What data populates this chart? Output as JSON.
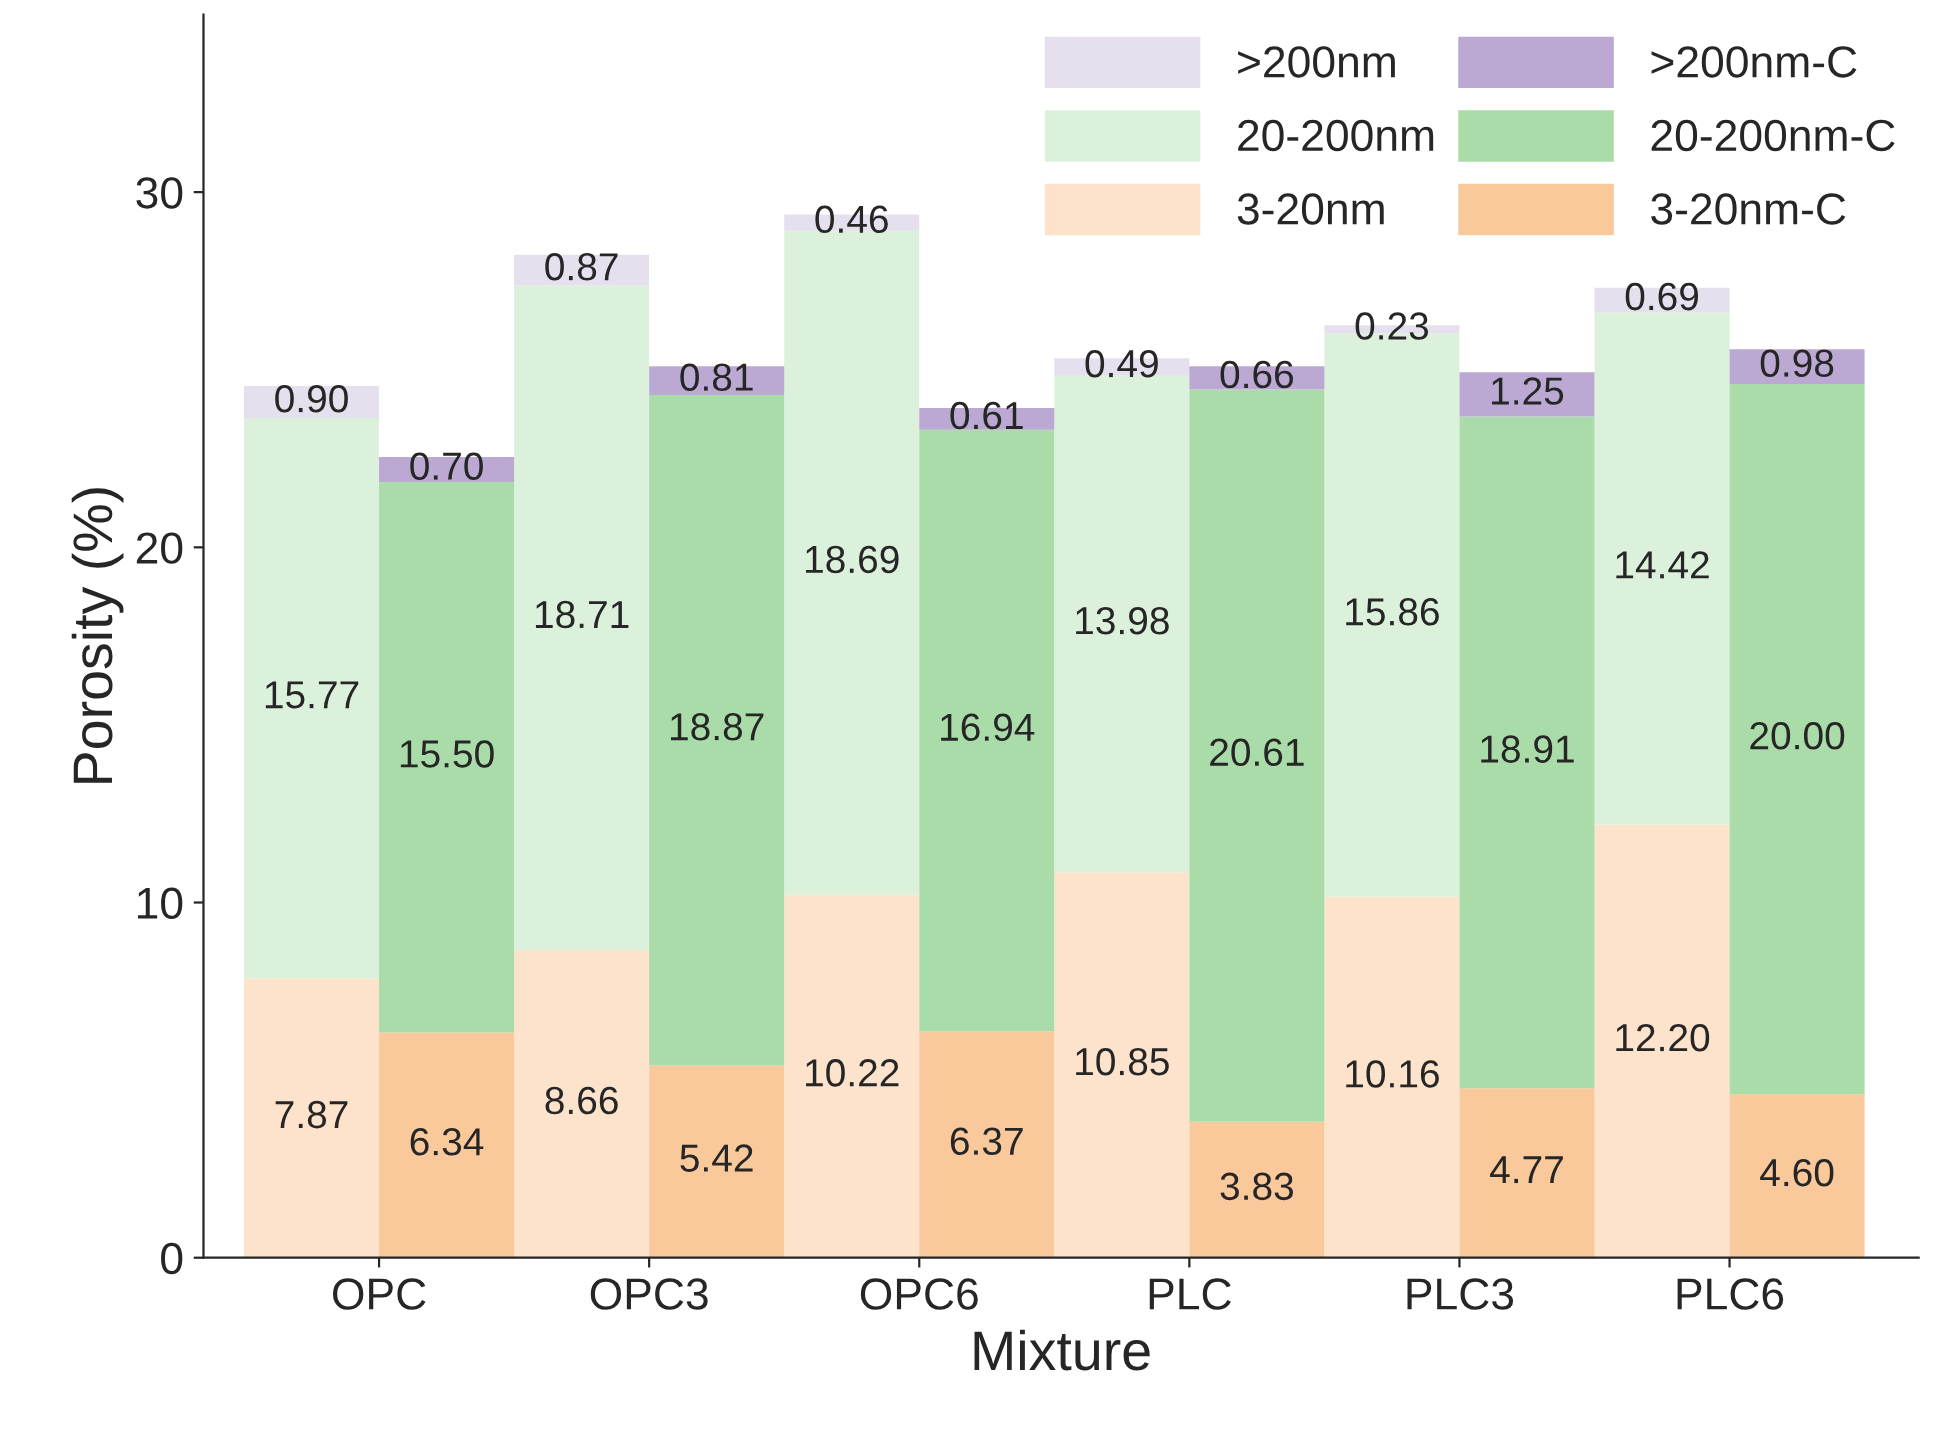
{
  "chart_data": {
    "type": "bar",
    "xlabel": "Mixture",
    "ylabel": "Porosity (%)",
    "categories": [
      "OPC",
      "OPC3",
      "OPC6",
      "PLC",
      "PLC3",
      "PLC6"
    ],
    "series": [
      {
        "name": "3-20nm",
        "color": "#fde3cc",
        "base": [
          0,
          0,
          0,
          0,
          0,
          0
        ],
        "values": [
          7.87,
          8.66,
          10.22,
          10.85,
          10.16,
          12.2
        ],
        "value_labels": [
          "7.87",
          "8.66",
          "10.22",
          "10.85",
          "10.16",
          "12.20"
        ]
      },
      {
        "name": "20-200nm",
        "color": "#dcf1dc",
        "base": [
          7.87,
          8.66,
          10.22,
          10.85,
          10.16,
          12.2
        ],
        "values": [
          15.77,
          18.71,
          18.69,
          13.98,
          15.86,
          14.42
        ],
        "value_labels": [
          "15.77",
          "18.71",
          "18.69",
          "13.98",
          "15.86",
          "14.42"
        ]
      },
      {
        "name": ">200nm",
        "color": "#e6dfee",
        "base": [
          23.64,
          27.37,
          28.91,
          24.83,
          26.02,
          26.62
        ],
        "values": [
          0.9,
          0.87,
          0.46,
          0.49,
          0.23,
          0.69
        ],
        "value_labels": [
          "0.90",
          "0.87",
          "0.46",
          "0.49",
          "0.23",
          "0.69"
        ]
      },
      {
        "name": "3-20nm-C",
        "color": "#f9c89b",
        "base": [
          0,
          0,
          0,
          0,
          0,
          0
        ],
        "values": [
          6.34,
          5.42,
          6.37,
          3.83,
          4.77,
          4.6
        ],
        "value_labels": [
          "6.34",
          "5.42",
          "6.37",
          "3.83",
          "4.77",
          "4.60"
        ]
      },
      {
        "name": "20-200nm-C",
        "color": "#aadcaa",
        "base": [
          6.34,
          5.42,
          6.37,
          3.83,
          4.77,
          4.6
        ],
        "values": [
          15.5,
          18.87,
          16.94,
          20.61,
          18.91,
          20.0
        ],
        "value_labels": [
          "15.50",
          "18.87",
          "16.94",
          "20.61",
          "18.91",
          "20.00"
        ]
      },
      {
        "name": ">200nm-C",
        "color": "#bca9d3",
        "base": [
          21.84,
          24.29,
          23.31,
          24.44,
          23.68,
          24.6
        ],
        "values": [
          0.7,
          0.81,
          0.61,
          0.66,
          1.25,
          0.98
        ],
        "value_labels": [
          "0.70",
          "0.81",
          "0.61",
          "0.66",
          "1.25",
          "0.98"
        ]
      }
    ],
    "ylim": [
      0,
      35
    ],
    "yticks": [
      0,
      10,
      20,
      30
    ],
    "grid": false,
    "legend": "top right"
  }
}
